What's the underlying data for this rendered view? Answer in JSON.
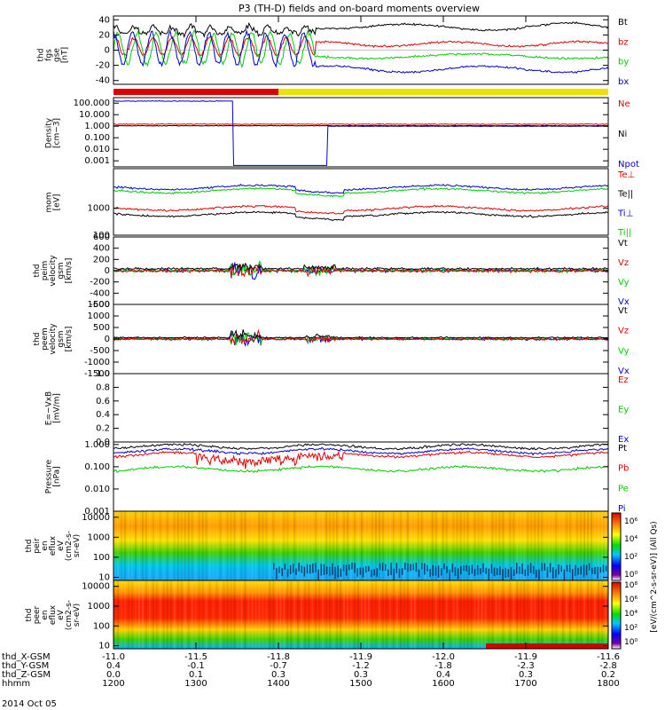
{
  "title": "P3 (TH-D) fields and on-board moments overview",
  "colors": {
    "black": "#000000",
    "red": "#e00000",
    "green": "#00cc00",
    "blue": "#0000d0",
    "yellow": "#f0e000"
  },
  "chart_data": [
    {
      "type": "line",
      "ylabel": [
        "thd",
        "fgs",
        "gse",
        "[nT]"
      ],
      "ylim": [
        -45,
        45
      ],
      "ticks": [
        40,
        20,
        0,
        -20,
        -40
      ],
      "scale": "linear",
      "series": [
        {
          "name": "Bt",
          "color": "black",
          "base": 25,
          "noise": 8,
          "late": 28
        },
        {
          "name": "bz",
          "color": "red",
          "base": 5,
          "noise": 8,
          "late": 8
        },
        {
          "name": "by",
          "color": "green",
          "base": 0,
          "noise": 20,
          "late": -8
        },
        {
          "name": "bx",
          "color": "blue",
          "base": 0,
          "noise": 20,
          "late": -28
        }
      ],
      "status_bar": {
        "segments": [
          {
            "color": "red",
            "from": 1200,
            "to": 1400
          },
          {
            "color": "yellow",
            "from": 1400,
            "to": 1800
          }
        ]
      }
    },
    {
      "type": "line",
      "ylabel": [
        "Density",
        "[cm−3]"
      ],
      "ylim": [
        0.0003,
        300
      ],
      "ticks": [
        "100.000",
        "10.000",
        "1.000",
        "0.100",
        "0.010",
        "0.001"
      ],
      "scale": "log",
      "series": [
        {
          "name": "Ne",
          "color": "red",
          "level": 1.5
        },
        {
          "name": "Ni",
          "color": "black",
          "level": 1.2
        },
        {
          "name": "Npot",
          "color": "blue",
          "level": 150
        }
      ]
    },
    {
      "type": "line",
      "ylabel": [
        "mom",
        "[eV]"
      ],
      "ylim": [
        100,
        30000
      ],
      "ticks": [
        "1000",
        "100"
      ],
      "scale": "log",
      "series": [
        {
          "name": "Te⊥",
          "color": "red",
          "level": 1000
        },
        {
          "name": "Te||",
          "color": "black",
          "level": 600
        },
        {
          "name": "Ti⊥",
          "color": "blue",
          "level": 6000
        },
        {
          "name": "Ti||",
          "color": "green",
          "level": 4500
        }
      ]
    },
    {
      "type": "line",
      "ylabel": [
        "thd",
        "peim",
        "velocity",
        "gsm",
        "[km/s]"
      ],
      "ylim": [
        -600,
        600
      ],
      "ticks": [
        600,
        400,
        200,
        0,
        -200,
        -400,
        -600
      ],
      "scale": "linear",
      "series": [
        {
          "name": "Vt",
          "color": "black"
        },
        {
          "name": "Vz",
          "color": "red"
        },
        {
          "name": "Vy",
          "color": "green"
        },
        {
          "name": "Vx",
          "color": "blue"
        }
      ]
    },
    {
      "type": "line",
      "ylabel": [
        "thd",
        "peem",
        "velocity",
        "gsm",
        "[km/s]"
      ],
      "ylim": [
        -1500,
        1500
      ],
      "ticks": [
        1500,
        1000,
        500,
        0,
        -500,
        -1000,
        -1500
      ],
      "scale": "linear",
      "series": [
        {
          "name": "Vt",
          "color": "black"
        },
        {
          "name": "Vz",
          "color": "red"
        },
        {
          "name": "Vy",
          "color": "green"
        },
        {
          "name": "Vx",
          "color": "blue"
        }
      ]
    },
    {
      "type": "line",
      "ylabel": [
        "E=−VxB",
        "[mV/m]"
      ],
      "ylim": [
        0,
        1
      ],
      "ticks": [
        "1.0",
        "0.8",
        "0.6",
        "0.4",
        "0.2",
        "0.0"
      ],
      "scale": "linear",
      "series": [
        {
          "name": "Ez",
          "color": "red"
        },
        {
          "name": "Ey",
          "color": "green"
        },
        {
          "name": "Ex",
          "color": "blue"
        }
      ]
    },
    {
      "type": "line",
      "ylabel": [
        "Pressure",
        "[nPa]"
      ],
      "ylim": [
        0.001,
        1.3
      ],
      "ticks": [
        "1.000",
        "0.100",
        "0.010",
        "0.001"
      ],
      "scale": "log",
      "series": [
        {
          "name": "Pt",
          "color": "black",
          "level": 0.8
        },
        {
          "name": "Pb",
          "color": "red",
          "level": 0.35
        },
        {
          "name": "Pe",
          "color": "green",
          "level": 0.08
        },
        {
          "name": "Pi",
          "color": "blue",
          "level": 0.5
        }
      ]
    },
    {
      "type": "heatmap",
      "ylabel": [
        "thd",
        "peir",
        "en",
        "eflux",
        "eV",
        "(cm2-s-",
        "sr-eV)"
      ],
      "ylim": [
        7,
        20000
      ],
      "ticks": [
        "10000",
        "1000",
        "100",
        "10"
      ],
      "scale": "log"
    },
    {
      "type": "heatmap",
      "ylabel": [
        "thd",
        "peer",
        "en",
        "eflux",
        "eV",
        "(cm2-s-",
        "sr-eV)"
      ],
      "ylim": [
        7,
        20000
      ],
      "ticks": [
        "10000",
        "1000",
        "100",
        "10"
      ],
      "scale": "log"
    }
  ],
  "colorbar": {
    "label": "[eV/(cm^2-s-sr-eV)] (All Qs)",
    "ticks_upper": [
      "10⁶",
      "10⁴",
      "10²",
      "10⁰"
    ],
    "ticks_lower": [
      "10⁸",
      "10⁶",
      "10⁴",
      "10²",
      "10⁰"
    ]
  },
  "xaxis": {
    "rows": [
      {
        "label": "thd_X-GSM",
        "values": [
          "-11.0",
          "-11.5",
          "-11.8",
          "-11.9",
          "-12.0",
          "-11.9",
          "-11.6"
        ]
      },
      {
        "label": "thd_Y-GSM",
        "values": [
          "0.4",
          "-0.1",
          "-0.7",
          "-1.2",
          "-1.8",
          "-2.3",
          "-2.8"
        ]
      },
      {
        "label": "thd_Z-GSM",
        "values": [
          "0.0",
          "0.1",
          "0.3",
          "0.3",
          "0.4",
          "0.3",
          "0.2"
        ]
      },
      {
        "label": "hhmm",
        "values": [
          "1200",
          "1300",
          "1400",
          "1500",
          "1600",
          "1700",
          "1800"
        ]
      }
    ],
    "date": "2014 Oct 05",
    "range": [
      1200,
      1800
    ]
  }
}
